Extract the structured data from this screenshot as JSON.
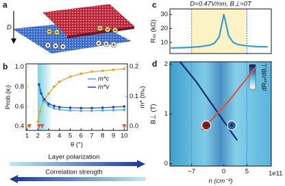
{
  "figure": {
    "panel_labels": [
      "a",
      "b",
      "c",
      "d"
    ],
    "field_label": "D",
    "bottom_arrows": [
      "Layer polarization",
      "Correlation strength"
    ]
  },
  "chart_data": [
    {
      "type": "line",
      "xlabel": "θ (°)",
      "ylabel": "Prob.(κₗ)",
      "y2label": "m* (mₑ)",
      "xlim": [
        0.9,
        10.3
      ],
      "xticks": [
        1,
        2,
        3,
        4,
        5,
        6,
        7,
        8,
        9,
        10
      ],
      "ylim": [
        0.36,
        1.03
      ],
      "yticks": [
        0.4,
        0.6,
        0.8,
        {
          "value": 1,
          "label": "1.0"
        }
      ],
      "y2lim": [
        -0.014,
        0.209
      ],
      "y2ticks": [
        {
          "value": 0,
          "label": "0.0"
        },
        0.1,
        0.2
      ],
      "marker": "o",
      "series": [
        {
          "color": "#e3a21a",
          "x": [
            2,
            2.2,
            2.5,
            3,
            3.5,
            4,
            5,
            6,
            7,
            8,
            9,
            10
          ],
          "values": [
            0.45,
            0.55,
            0.65,
            0.73,
            0.8,
            0.85,
            0.9,
            0.93,
            0.95,
            0.96,
            0.97,
            0.98
          ]
        },
        {
          "name": "m*c",
          "color": "#45a9e6",
          "axis": "y2",
          "x": [
            2.2,
            2.5,
            3,
            3.5,
            4,
            5,
            6,
            7,
            8,
            9,
            10
          ],
          "values": [
            0.12,
            0.085,
            0.068,
            0.06,
            0.056,
            0.053,
            0.052,
            0.052,
            0.053,
            0.054,
            0.055
          ]
        },
        {
          "name": "m*v",
          "color": "#2240c4",
          "axis": "y2",
          "x": [
            2.1,
            2.3,
            2.6,
            3,
            3.5,
            4,
            5,
            6,
            7,
            8,
            9,
            10
          ],
          "values": [
            0.14,
            0.11,
            0.09,
            0.075,
            0.068,
            0.064,
            0.062,
            0.061,
            0.061,
            0.062,
            0.064,
            0.066
          ]
        }
      ],
      "arrows_x": [
        1.2,
        2.1,
        2.4,
        10
      ],
      "arrow_color": "#e8502a"
    },
    {
      "type": "line",
      "title": "D=0.47V/nm, B⊥=0T",
      "ylabel": "Rₓₓ (kΩ)",
      "xlim": [
        -11.7,
        10.3
      ],
      "ylim": [
        2,
        34
      ],
      "yticks": [
        10,
        20,
        30
      ],
      "x": [
        -11.5,
        -9,
        -7,
        -5,
        -3,
        -2,
        -1,
        -0.5,
        0,
        0.5,
        1,
        2,
        3,
        5,
        7,
        9.5
      ],
      "series": [
        {
          "color": "#3a9ad9",
          "values": [
            6,
            6.2,
            6.5,
            7,
            8,
            9.5,
            14,
            22,
            30,
            23,
            15,
            10,
            8.5,
            7.5,
            7,
            6.8
          ]
        }
      ],
      "vlines": [
        {
          "x": -7,
          "color": "#e0533a"
        },
        {
          "x": 5,
          "color": "#3a7ad9"
        }
      ]
    },
    {
      "type": "line",
      "xlabel": "n (cm⁻²)",
      "ylabel": "B⊥ (T)",
      "x_multiplier": "1e11",
      "colorbar_label": "dRₓₓ/dB⊥",
      "xlim": [
        -11.7,
        10.3
      ],
      "xticks": [
        {
          "value": -7,
          "label": "−7"
        },
        0,
        5
      ],
      "ylim": [
        -0.05,
        2.05
      ],
      "yticks": [
        0,
        1,
        2
      ],
      "series": [
        {
          "color": "#142a6e",
          "x": [
            -9.5,
            -6,
            -3,
            0,
            2.9
          ],
          "values": [
            2.05,
            1.65,
            1.25,
            0.85,
            0.47
          ]
        },
        {
          "color": "#e0523c",
          "x": [
            -4.7,
            -2,
            1,
            4,
            7
          ],
          "values": [
            0.68,
            0.95,
            1.25,
            1.6,
            1.95
          ]
        }
      ],
      "vlines": [
        {
          "x": -7,
          "color": "#e0533a"
        },
        {
          "x": 5,
          "color": "#3a7ad9"
        }
      ],
      "annotations": [
        {
          "text": "−",
          "x": -3.8,
          "y": 0.77,
          "color": "#8c1a1a"
        },
        {
          "text": "+",
          "x": 1.7,
          "y": 0.77,
          "color": "#2a60b0"
        }
      ]
    }
  ]
}
